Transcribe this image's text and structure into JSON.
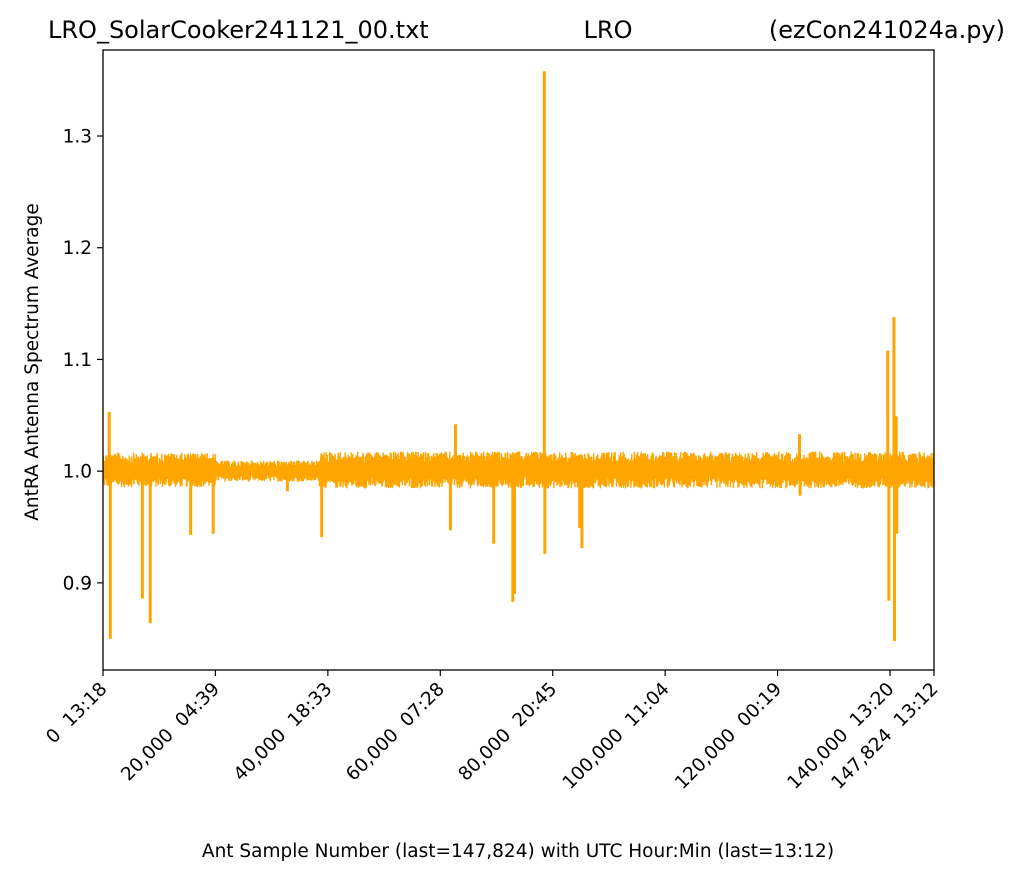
{
  "chart_data": {
    "type": "line",
    "title": {
      "left": "LRO_SolarCooker241121_00.txt",
      "center": "LRO",
      "right": "(ezCon241024a.py)"
    },
    "xlabel": "Ant Sample Number (last=147,824) with UTC Hour:Min (last=13:12)",
    "ylabel": "AntRA Antenna Spectrum Average",
    "xlim": [
      0,
      147824
    ],
    "ylim": [
      0.822,
      1.377
    ],
    "yticks": [
      {
        "value": 0.9,
        "label": "0.9"
      },
      {
        "value": 1.0,
        "label": "1.0"
      },
      {
        "value": 1.1,
        "label": "1.1"
      },
      {
        "value": 1.2,
        "label": "1.2"
      },
      {
        "value": 1.3,
        "label": "1.3"
      }
    ],
    "xticks": [
      {
        "value": 0,
        "label": "0  13:18"
      },
      {
        "value": 20000,
        "label": "20,000  04:39"
      },
      {
        "value": 40000,
        "label": "40,000  18:33"
      },
      {
        "value": 60000,
        "label": "60,000  07:28"
      },
      {
        "value": 80000,
        "label": "80,000  20:45"
      },
      {
        "value": 100000,
        "label": "100,000  11:04"
      },
      {
        "value": 120000,
        "label": "120,000  00:19"
      },
      {
        "value": 140000,
        "label": "140,000  13:20"
      },
      {
        "value": 147824,
        "label": "147,824  13:12"
      }
    ],
    "series": [
      {
        "color": "#FFA500",
        "baseline": 1.0,
        "noise_bands": [
          {
            "x_start": 0,
            "x_end": 20000,
            "low": 0.986,
            "high": 1.016
          },
          {
            "x_start": 20000,
            "x_end": 38500,
            "low": 0.991,
            "high": 1.009
          },
          {
            "x_start": 38500,
            "x_end": 147824,
            "low": 0.985,
            "high": 1.017
          }
        ],
        "spikes": [
          {
            "x": 1100,
            "y": 1.053
          },
          {
            "x": 1300,
            "y": 0.85
          },
          {
            "x": 7000,
            "y": 0.886
          },
          {
            "x": 8400,
            "y": 0.864
          },
          {
            "x": 15600,
            "y": 0.943
          },
          {
            "x": 19600,
            "y": 0.944
          },
          {
            "x": 32800,
            "y": 0.982
          },
          {
            "x": 38900,
            "y": 0.941
          },
          {
            "x": 61800,
            "y": 0.947
          },
          {
            "x": 62700,
            "y": 1.042
          },
          {
            "x": 69500,
            "y": 0.935
          },
          {
            "x": 72900,
            "y": 0.883
          },
          {
            "x": 73200,
            "y": 0.89
          },
          {
            "x": 78500,
            "y": 1.358
          },
          {
            "x": 78600,
            "y": 0.926
          },
          {
            "x": 84800,
            "y": 0.949
          },
          {
            "x": 85200,
            "y": 0.931
          },
          {
            "x": 123900,
            "y": 1.033
          },
          {
            "x": 124000,
            "y": 0.978
          },
          {
            "x": 139600,
            "y": 1.108
          },
          {
            "x": 139800,
            "y": 0.884
          },
          {
            "x": 140700,
            "y": 1.138
          },
          {
            "x": 140800,
            "y": 0.848
          },
          {
            "x": 141100,
            "y": 1.049
          },
          {
            "x": 141200,
            "y": 0.944
          }
        ]
      }
    ]
  }
}
